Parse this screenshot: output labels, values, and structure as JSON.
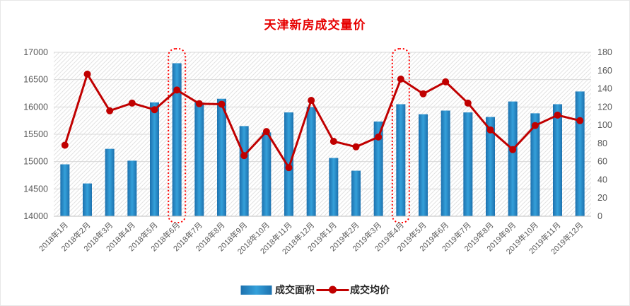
{
  "colors": {
    "title": "#e60000",
    "bar_dark": "#1d71ae",
    "bar_light": "#34a0da",
    "line": "#c00000",
    "highlight": "#ff0000",
    "grid": "#d9d9d9",
    "hatch": "#e3e3e3",
    "axis_text": "#595959",
    "axis_line": "#bfbfbf"
  },
  "legend": {
    "area_label": "成交面积",
    "price_label": "成交均价"
  },
  "chart_data": {
    "type": "bar+line",
    "title": "天津新房成交量价",
    "categories": [
      "2018年1月",
      "2018年2月",
      "2018年3月",
      "2018年4月",
      "2018年5月",
      "2018年6月",
      "2018年7月",
      "2018年8月",
      "2018年9月",
      "2018年10月",
      "2018年11月",
      "2018年12月",
      "2019年1月",
      "2019年2月",
      "2019年3月",
      "2019年4月",
      "2019年5月",
      "2019年6月",
      "2019年7月",
      "2019年8月",
      "2019年9月",
      "2019年10月",
      "2019年11月",
      "2019年12月"
    ],
    "series": [
      {
        "name": "成交面积",
        "type": "bar",
        "axis": "right",
        "values": [
          57,
          36,
          74,
          61,
          125,
          168,
          125,
          129,
          99,
          92,
          114,
          120,
          64,
          50,
          104,
          123,
          112,
          116,
          114,
          109,
          126,
          113,
          123,
          137
        ]
      },
      {
        "name": "成交均价",
        "type": "line",
        "axis": "left",
        "values": [
          15300,
          16600,
          15930,
          16070,
          15950,
          16310,
          16060,
          16050,
          15110,
          15550,
          14890,
          16120,
          15370,
          15270,
          15450,
          16510,
          16240,
          16460,
          16070,
          15580,
          15220,
          15660,
          15850,
          15750
        ]
      }
    ],
    "left_axis": {
      "min": 14000,
      "max": 17000,
      "step": 500,
      "ticks": [
        14000,
        14500,
        15000,
        15500,
        16000,
        16500,
        17000
      ]
    },
    "right_axis": {
      "min": 0,
      "max": 180,
      "step": 20,
      "ticks": [
        0,
        20,
        40,
        60,
        80,
        100,
        120,
        140,
        160,
        180
      ]
    },
    "highlighted_categories": [
      "2018年6月",
      "2019年4月"
    ],
    "grid": true,
    "legend_position": "bottom"
  }
}
